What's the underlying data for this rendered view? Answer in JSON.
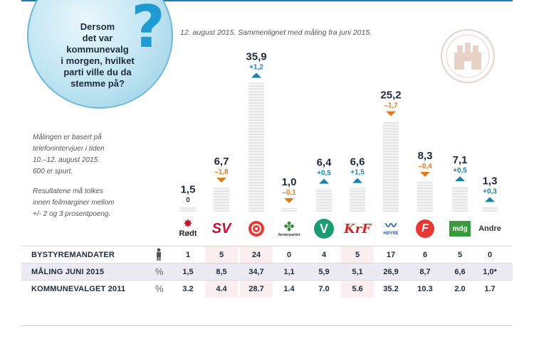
{
  "bubble": {
    "question": "Dersom det var kommunevalg i morgen, hvilket parti ville du da stemme på?",
    "lines": [
      "Dersom",
      "det var",
      "kommunevalg",
      "i morgen, hvilket",
      "parti ville du da",
      "stemme på?"
    ]
  },
  "subtitle": "12. august 2015. Sammenlignet med måling fra juni 2015.",
  "notes": {
    "method_lines": [
      "Målingen er basert på",
      "telefonintervjuer i tiden",
      "10.–12. august 2015.",
      "600 er spurt."
    ],
    "margin_lines": [
      "Resultatene må tolkes",
      "innen feilmarginer mellom",
      "+/- 2 og 3 prosentpoeng."
    ]
  },
  "colors": {
    "accent": "#1a7fa8",
    "up": "#1a7fa8",
    "down": "#e07a1f",
    "bar": "#e6e6e6",
    "bar_stripe": "#ffffff",
    "row_shade": "#ecebf3"
  },
  "chart_data": {
    "type": "bar",
    "categories": [
      "Rødt",
      "SV",
      "Ap",
      "Sp",
      "V",
      "KrF",
      "Høyre",
      "FrP",
      "MDG",
      "Andre"
    ],
    "values": [
      1.5,
      6.7,
      35.9,
      1.0,
      6.4,
      6.6,
      25.2,
      8.3,
      7.1,
      1.3
    ],
    "value_labels": [
      "1,5",
      "6,7",
      "35,9",
      "1,0",
      "6,4",
      "6,6",
      "25,2",
      "8,3",
      "7,1",
      "1,3"
    ],
    "change_labels": [
      "0",
      "–1,8",
      "+1,2",
      "–0,1",
      "+0,5",
      "+1,5",
      "–1,7",
      "–0,4",
      "+0,5",
      "+0,3"
    ],
    "change_direction": [
      "none",
      "down",
      "up",
      "down",
      "up",
      "up",
      "down",
      "down",
      "up",
      "up"
    ],
    "ylim": [
      0,
      36
    ]
  },
  "logos": [
    {
      "name": "rodt-logo",
      "text": "Rødt",
      "color": "#c8102e"
    },
    {
      "name": "sv-logo",
      "text": "SV",
      "color": "#c8102e"
    },
    {
      "name": "ap-logo",
      "text": "",
      "color": "#e53935"
    },
    {
      "name": "sp-logo",
      "text": "Senterpartiet",
      "color": "#2e8b3e"
    },
    {
      "name": "venstre-logo",
      "text": "V",
      "color": "#1a9b72"
    },
    {
      "name": "krf-logo",
      "text": "KrF",
      "color": "#d42a2a"
    },
    {
      "name": "hoyre-logo",
      "text": "HØYRE",
      "color": "#1f5fa8"
    },
    {
      "name": "frp-logo",
      "text": "F",
      "color": "#e53935"
    },
    {
      "name": "mdg-logo",
      "text": "mdg",
      "color": "#3b9a3b"
    },
    {
      "name": "andre-logo",
      "text": "Andre",
      "color": "#333333"
    }
  ],
  "table": {
    "rows": [
      {
        "label": "BYSTYREMANDATER",
        "unit_icon": "person-icon",
        "unit": "",
        "cells": [
          "1",
          "5",
          "24",
          "0",
          "4",
          "5",
          "17",
          "6",
          "5",
          "0"
        ]
      },
      {
        "label": "MÅLING JUNI 2015",
        "unit": "%",
        "cells": [
          "1,5",
          "8,5",
          "34,7",
          "1,1",
          "5,9",
          "5,1",
          "26,9",
          "8,7",
          "6,6",
          "1,0*"
        ]
      },
      {
        "label": "KOMMUNEVALGET 2011",
        "unit": "%",
        "cells": [
          "3.2",
          "4.4",
          "28.7",
          "1.4",
          "7.0",
          "5.6",
          "35.2",
          "10.3",
          "2.0",
          "1.7"
        ]
      }
    ]
  }
}
